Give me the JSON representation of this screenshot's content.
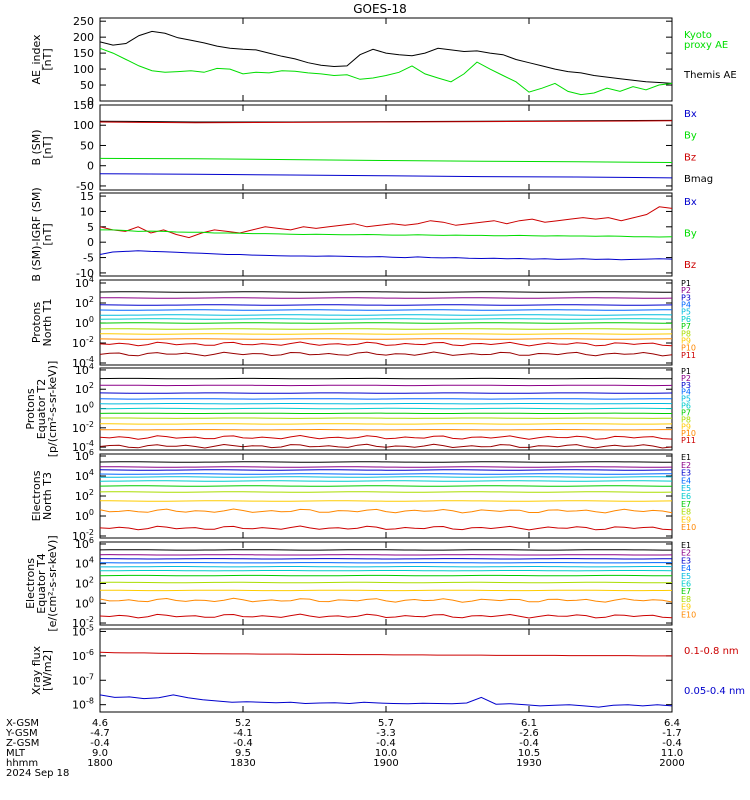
{
  "title": "GOES-18",
  "colors": {
    "black": "#000000",
    "green": "#00dd00",
    "blue": "#0000cc",
    "red": "#cc0000",
    "P": [
      "#000000",
      "#8b0088",
      "#0000cc",
      "#0066ff",
      "#00bbdd",
      "#00cccc",
      "#00cc00",
      "#aadd00",
      "#ffcc00",
      "#ff8800",
      "#cc0000",
      "#990000"
    ]
  },
  "panels": [
    {
      "id": "ae",
      "ylabel": [
        "AE_index",
        "[nT]"
      ],
      "yticks": [
        "250",
        "200",
        "150",
        "100",
        "50",
        "0"
      ],
      "ylim": [
        0,
        260
      ],
      "scale": "linear",
      "legend": [
        {
          "text": "Kyoto",
          "color": "#00dd00"
        },
        {
          "text": "proxy AE",
          "color": "#00dd00"
        },
        {
          "text": "Themis AE",
          "color": "#000000"
        }
      ],
      "series": [
        {
          "name": "Themis AE",
          "color": "#000000",
          "values": [
            185,
            175,
            180,
            205,
            218,
            212,
            198,
            190,
            182,
            172,
            165,
            162,
            160,
            150,
            140,
            132,
            120,
            112,
            108,
            110,
            145,
            162,
            150,
            145,
            142,
            150,
            165,
            160,
            155,
            157,
            150,
            145,
            130,
            120,
            110,
            100,
            92,
            88,
            80,
            75,
            70,
            65,
            60,
            58,
            55
          ]
        },
        {
          "name": "Kyoto proxy AE",
          "color": "#00dd00",
          "values": [
            165,
            150,
            130,
            110,
            95,
            90,
            92,
            95,
            90,
            102,
            100,
            85,
            90,
            88,
            95,
            93,
            88,
            85,
            80,
            82,
            68,
            72,
            80,
            90,
            110,
            85,
            72,
            60,
            85,
            122,
            100,
            80,
            60,
            28,
            40,
            55,
            30,
            20,
            25,
            40,
            30,
            45,
            35,
            50,
            55
          ]
        }
      ]
    },
    {
      "id": "bsm",
      "ylabel": [
        "B (SM)",
        "[nT]"
      ],
      "yticks": [
        "150",
        "100",
        "50",
        "0",
        "-50"
      ],
      "ylim": [
        -60,
        150
      ],
      "scale": "linear",
      "legend": [
        {
          "text": "Bx",
          "color": "#0000cc"
        },
        {
          "text": "By",
          "color": "#00dd00"
        },
        {
          "text": "Bz",
          "color": "#cc0000"
        },
        {
          "text": "Bmag",
          "color": "#000000"
        }
      ],
      "series": [
        {
          "name": "Bmag",
          "color": "#000000",
          "values": [
            110,
            108,
            108,
            109,
            110,
            111,
            112
          ]
        },
        {
          "name": "Bz",
          "color": "#cc0000",
          "values": [
            108,
            106,
            107,
            108,
            109,
            110,
            111
          ]
        },
        {
          "name": "By",
          "color": "#00dd00",
          "values": [
            18,
            17,
            15,
            13,
            11,
            10,
            8
          ]
        },
        {
          "name": "Bx",
          "color": "#0000cc",
          "values": [
            -20,
            -21,
            -23,
            -25,
            -27,
            -28,
            -30
          ]
        }
      ]
    },
    {
      "id": "bigrf",
      "ylabel": [
        "B (SM)-IGRF (SM)",
        "[nT]"
      ],
      "yticks": [
        "15",
        "10",
        "5",
        "0",
        "-5",
        "-10"
      ],
      "ylim": [
        -11,
        16
      ],
      "scale": "linear",
      "legend": [
        {
          "text": "Bx",
          "color": "#0000cc"
        },
        {
          "text": "By",
          "color": "#00dd00"
        },
        {
          "text": "Bz",
          "color": "#cc0000"
        }
      ],
      "series": [
        {
          "name": "Bz",
          "color": "#cc0000",
          "values": [
            5,
            4,
            3.5,
            5,
            3,
            4,
            2.5,
            1.5,
            3,
            4,
            3.5,
            3,
            4,
            5,
            4.5,
            4,
            5,
            4.5,
            5,
            5.5,
            6,
            5,
            5.5,
            6,
            5.5,
            6,
            7,
            6.5,
            5.5,
            6,
            6.5,
            7,
            6,
            7,
            7.5,
            6.5,
            7,
            7.5,
            8,
            7.5,
            8,
            7,
            8,
            9,
            11.5,
            11
          ]
        },
        {
          "name": "By",
          "color": "#00dd00",
          "values": [
            4,
            4,
            3.8,
            3.5,
            3.6,
            3.5,
            3.3,
            3.2,
            3.2,
            3,
            3,
            2.9,
            2.8,
            2.8,
            2.7,
            2.6,
            2.5,
            2.6,
            2.5,
            2.4,
            2.4,
            2.5,
            2.4,
            2.3,
            2.3,
            2.4,
            2.3,
            2.2,
            2.3,
            2.2,
            2.2,
            2.1,
            2.1,
            2.2,
            2.1,
            2,
            2.1,
            2,
            2,
            1.9,
            2,
            1.9,
            1.8,
            1.8,
            1.7,
            1.8
          ]
        },
        {
          "name": "Bx",
          "color": "#0000cc",
          "values": [
            -4,
            -3.2,
            -3,
            -2.8,
            -3,
            -3.1,
            -3.3,
            -3.5,
            -3.6,
            -3.8,
            -4,
            -4,
            -4.2,
            -4.3,
            -4.4,
            -4.5,
            -4.5,
            -4.6,
            -4.5,
            -4.6,
            -4.7,
            -4.8,
            -4.7,
            -4.9,
            -5,
            -4.8,
            -5,
            -5.1,
            -5,
            -5.2,
            -5.3,
            -5.2,
            -5.4,
            -5.3,
            -5.5,
            -5.4,
            -5.6,
            -5.5,
            -5.4,
            -5.6,
            -5.5,
            -5.7,
            -5.6,
            -5.5,
            -5.4,
            -5.5
          ]
        }
      ]
    },
    {
      "id": "pn",
      "ylabel": [
        "Protons",
        "North T1"
      ],
      "yticks": [
        4,
        2,
        0,
        -2,
        -4
      ],
      "ylim": [
        -4.2,
        4.3
      ],
      "scale": "log",
      "labels_top": true,
      "legend": [
        "P1",
        "P2",
        "P3",
        "P4",
        "P5",
        "P6",
        "P7",
        "P8",
        "P9",
        "P10",
        "P11"
      ],
      "levels": [
        3.1,
        2.5,
        1.8,
        1.3,
        0.8,
        0.4,
        0,
        -0.6,
        -1.1,
        -1.6,
        -2.1,
        -3.1
      ]
    },
    {
      "id": "pe",
      "ylabel": [
        "Protons",
        "Equator T2",
        "[p/(cm²-s-sr-keV)]"
      ],
      "yticks": [
        4,
        2,
        0,
        -2,
        -4
      ],
      "ylim": [
        -4.3,
        4.2
      ],
      "scale": "log",
      "labels_top": true,
      "legend": [
        "P1",
        "P2",
        "P3",
        "P4",
        "P5",
        "P6",
        "P7",
        "P8",
        "P9",
        "P10",
        "P11"
      ],
      "levels": [
        3.1,
        2.4,
        1.6,
        1.0,
        0.5,
        0,
        -0.5,
        -1.0,
        -1.6,
        -2.2,
        -3.0,
        -3.9
      ]
    },
    {
      "id": "en",
      "ylabel": [
        "Electrons",
        "North T3"
      ],
      "yticks": [
        6,
        4,
        2,
        0,
        -2
      ],
      "ylim": [
        -2.2,
        6.2
      ],
      "scale": "log",
      "labels_top": false,
      "legend": [
        "E1",
        "E2",
        "E3",
        "E4",
        "E5",
        "E6",
        "E7",
        "E8",
        "E9",
        "E10"
      ],
      "levels": [
        5.4,
        4.9,
        4.6,
        4.2,
        3.9,
        3.5,
        3.0,
        2.4,
        1.5,
        0.5,
        -1.2
      ]
    },
    {
      "id": "ee",
      "ylabel": [
        "Electrons",
        "Equator T4",
        "[e/(cm²-s-sr-keV)]"
      ],
      "yticks": [
        6,
        4,
        2,
        0,
        -2
      ],
      "ylim": [
        -2.2,
        6.2
      ],
      "scale": "log",
      "labels_top": false,
      "legend": [
        "E1",
        "E2",
        "E3",
        "E4",
        "E5",
        "E6",
        "E7",
        "E8",
        "E9",
        "E10"
      ],
      "levels": [
        5.4,
        4.9,
        4.5,
        4.1,
        3.7,
        3.3,
        2.8,
        2.1,
        1.3,
        0.3,
        -1.3
      ]
    },
    {
      "id": "xray",
      "ylabel": [
        "Xray flux",
        "[W/m2]"
      ],
      "yticks": [
        -5,
        -6,
        -7,
        -8
      ],
      "ylim": [
        -8.3,
        -4.9
      ],
      "scale": "log",
      "labels_top": false,
      "legend": [
        {
          "text": "0.1-0.8 nm",
          "color": "#cc0000"
        },
        {
          "text": "0.05-0.4 nm",
          "color": "#0000cc"
        }
      ],
      "series": [
        {
          "name": "0.1-0.8 nm",
          "color": "#cc0000",
          "values": [
            -5.85,
            -5.87,
            -5.88,
            -5.88,
            -5.89,
            -5.9,
            -5.9,
            -5.91,
            -5.91,
            -5.92,
            -5.92,
            -5.93,
            -5.93,
            -5.93,
            -5.94,
            -5.94,
            -5.94,
            -5.95,
            -5.95,
            -5.95,
            -5.96,
            -5.96,
            -5.96,
            -5.97,
            -5.97,
            -5.97,
            -5.97,
            -5.98,
            -5.98,
            -5.98,
            -5.98,
            -5.98,
            -5.99,
            -5.99,
            -5.99,
            -5.99,
            -5.99,
            -6.0,
            -6.0,
            -6.0
          ]
        },
        {
          "name": "0.05-0.4 nm",
          "color": "#0000cc",
          "values": [
            -7.6,
            -7.7,
            -7.68,
            -7.75,
            -7.72,
            -7.6,
            -7.72,
            -7.8,
            -7.85,
            -7.9,
            -7.88,
            -7.9,
            -7.92,
            -7.9,
            -7.95,
            -7.93,
            -7.92,
            -7.95,
            -7.9,
            -7.93,
            -7.95,
            -7.96,
            -7.94,
            -7.95,
            -7.96,
            -7.93,
            -7.7,
            -7.98,
            -7.96,
            -8.0,
            -8.05,
            -8.02,
            -8.0,
            -8.05,
            -8.1,
            -8.02,
            -8.0,
            -8.05,
            -8.0,
            -8.05
          ]
        }
      ]
    }
  ],
  "xaxis": {
    "rows": [
      {
        "label": "X-GSM",
        "values": [
          "4.6",
          "5.2",
          "5.7",
          "6.1",
          "6.4"
        ]
      },
      {
        "label": "Y-GSM",
        "values": [
          "-4.7",
          "-4.1",
          "-3.3",
          "-2.6",
          "-1.7"
        ]
      },
      {
        "label": "Z-GSM",
        "values": [
          "-0.4",
          "-0.4",
          "-0.4",
          "-0.4",
          "-0.4"
        ]
      },
      {
        "label": "MLT",
        "values": [
          "9.0",
          "9.5",
          "10.0",
          "10.5",
          "11.0"
        ]
      },
      {
        "label": "hhmm",
        "values": [
          "1800",
          "1830",
          "1900",
          "1930",
          "2000"
        ]
      }
    ],
    "date": "2024 Sep 18"
  },
  "chart_data": [
    {
      "type": "line",
      "ylabel": "AE_index [nT]",
      "ylim": [
        0,
        260
      ],
      "series": [
        "Themis AE",
        "Kyoto proxy AE"
      ]
    },
    {
      "type": "line",
      "ylabel": "B (SM) [nT]",
      "ylim": [
        -60,
        150
      ],
      "series": [
        "Bx",
        "By",
        "Bz",
        "Bmag"
      ]
    },
    {
      "type": "line",
      "ylabel": "B (SM)-IGRF (SM) [nT]",
      "ylim": [
        -11,
        16
      ],
      "series": [
        "Bx",
        "By",
        "Bz"
      ]
    },
    {
      "type": "line",
      "ylabel": "Protons North T1",
      "scale": "log",
      "series": [
        "P1",
        "P2",
        "P3",
        "P4",
        "P5",
        "P6",
        "P7",
        "P8",
        "P9",
        "P10",
        "P11"
      ]
    },
    {
      "type": "line",
      "ylabel": "Protons Equator T2 [p/(cm²-s-sr-keV)]",
      "scale": "log",
      "series": [
        "P1",
        "P2",
        "P3",
        "P4",
        "P5",
        "P6",
        "P7",
        "P8",
        "P9",
        "P10",
        "P11"
      ]
    },
    {
      "type": "line",
      "ylabel": "Electrons North T3",
      "scale": "log",
      "series": [
        "E1",
        "E2",
        "E3",
        "E4",
        "E5",
        "E6",
        "E7",
        "E8",
        "E9",
        "E10"
      ]
    },
    {
      "type": "line",
      "ylabel": "Electrons Equator T4 [e/(cm²-s-sr-keV)]",
      "scale": "log",
      "series": [
        "E1",
        "E2",
        "E3",
        "E4",
        "E5",
        "E6",
        "E7",
        "E8",
        "E9",
        "E10"
      ]
    },
    {
      "type": "line",
      "ylabel": "Xray flux [W/m2]",
      "scale": "log",
      "series": [
        "0.1-0.8 nm",
        "0.05-0.4 nm"
      ]
    }
  ]
}
